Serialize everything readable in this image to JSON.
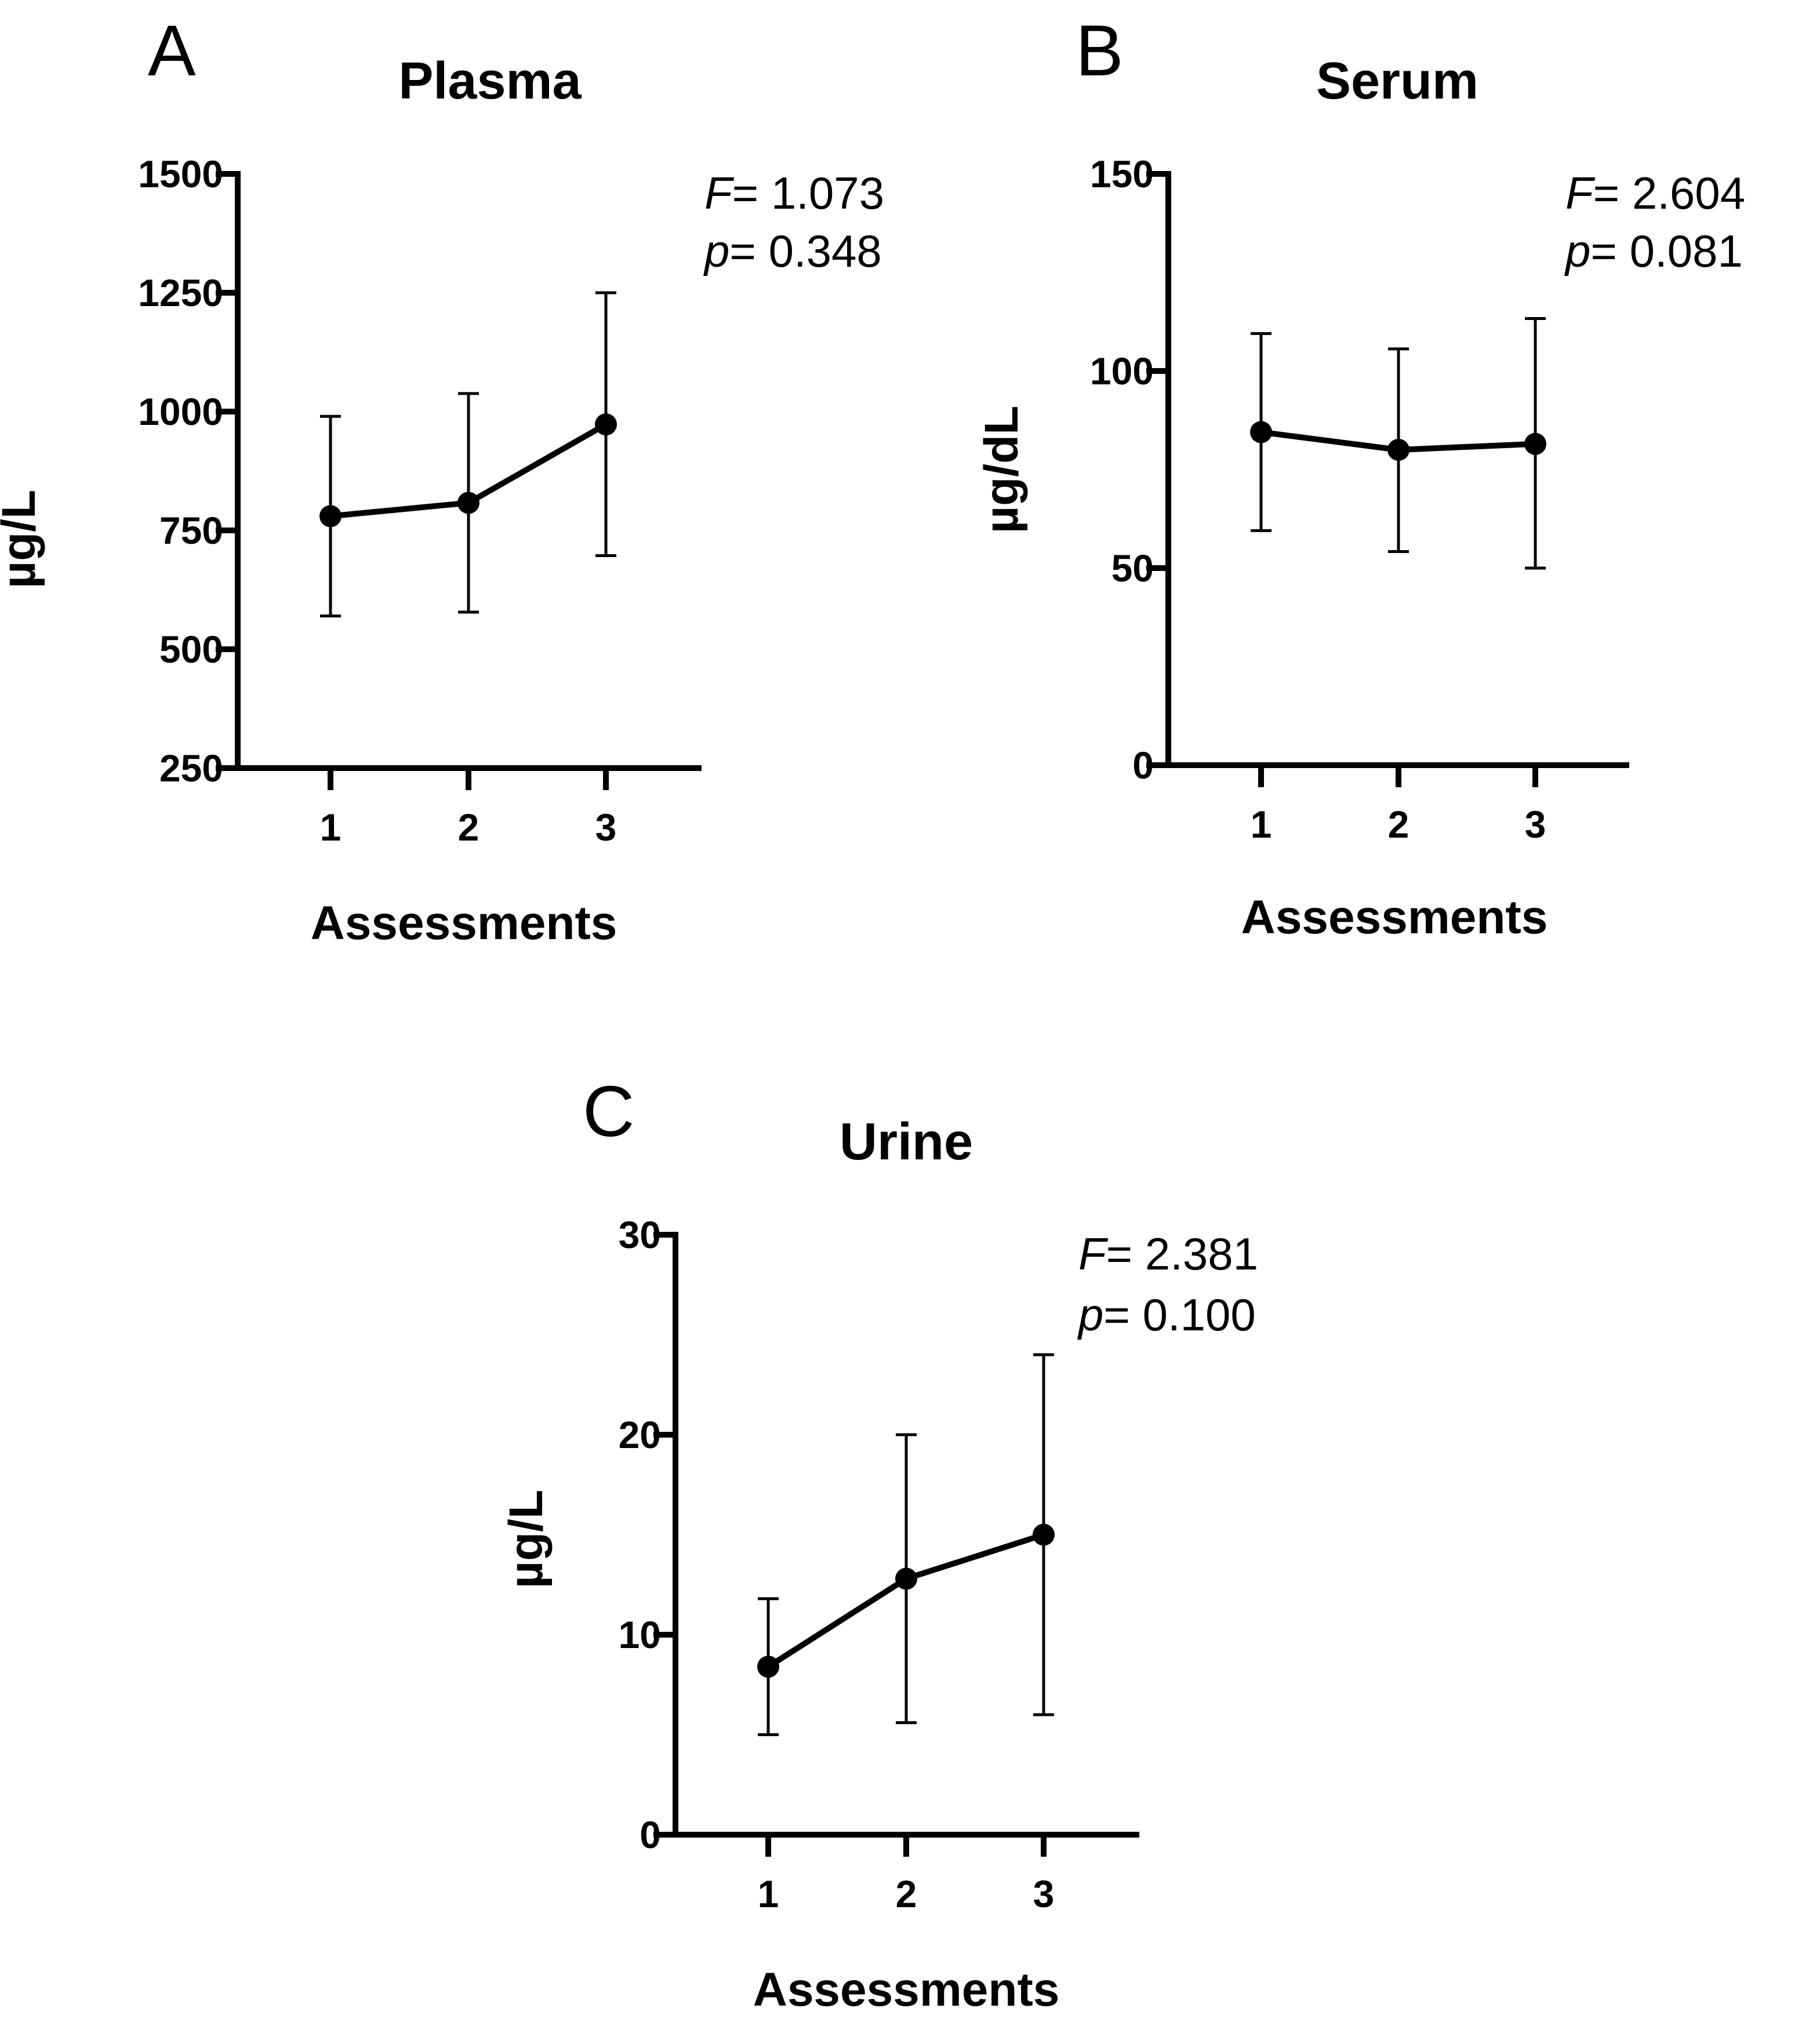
{
  "chart_data": [
    {
      "panel": "A",
      "type": "line",
      "title": "Plasma",
      "xlabel": "Assessments",
      "ylabel": "µg/L",
      "categories": [
        "1",
        "2",
        "3"
      ],
      "ylim": [
        250,
        1500
      ],
      "yticks": [
        1500,
        1250,
        1000,
        750,
        500,
        250
      ],
      "series": [
        {
          "name": "Plasma",
          "values": [
            780,
            808,
            973
          ],
          "err_low": [
            570,
            578,
            697
          ],
          "err_high": [
            990,
            1038,
            1250
          ]
        }
      ],
      "stats": {
        "f_symbol": "F",
        "f_value": "= 1.073",
        "p_symbol": "p",
        "p_value": "= 0.348"
      }
    },
    {
      "panel": "B",
      "type": "line",
      "title": "Serum",
      "xlabel": "Assessments",
      "ylabel": "µg/dL",
      "categories": [
        "1",
        "2",
        "3"
      ],
      "ylim": [
        0,
        150
      ],
      "yticks": [
        150,
        100,
        50,
        0
      ],
      "series": [
        {
          "name": "Serum",
          "values": [
            84.5,
            80,
            81.5
          ],
          "err_low": [
            59.5,
            54.2,
            50
          ],
          "err_high": [
            109.5,
            105.6,
            113.3
          ]
        }
      ],
      "stats": {
        "f_symbol": "F",
        "f_value": "= 2.604",
        "p_symbol": "p",
        "p_value": "= 0.081"
      }
    },
    {
      "panel": "C",
      "type": "line",
      "title": "Urine",
      "xlabel": "Assessments",
      "ylabel": "µg/L",
      "categories": [
        "1",
        "2",
        "3"
      ],
      "ylim": [
        0,
        30
      ],
      "yticks": [
        30,
        20,
        10,
        0
      ],
      "series": [
        {
          "name": "Urine",
          "values": [
            8.4,
            12.8,
            15
          ],
          "err_low": [
            5,
            5.6,
            6
          ],
          "err_high": [
            11.8,
            20,
            24
          ]
        }
      ],
      "stats": {
        "f_symbol": "F",
        "f_value": "= 2.381",
        "p_symbol": "p",
        "p_value": "= 0.100"
      }
    }
  ]
}
